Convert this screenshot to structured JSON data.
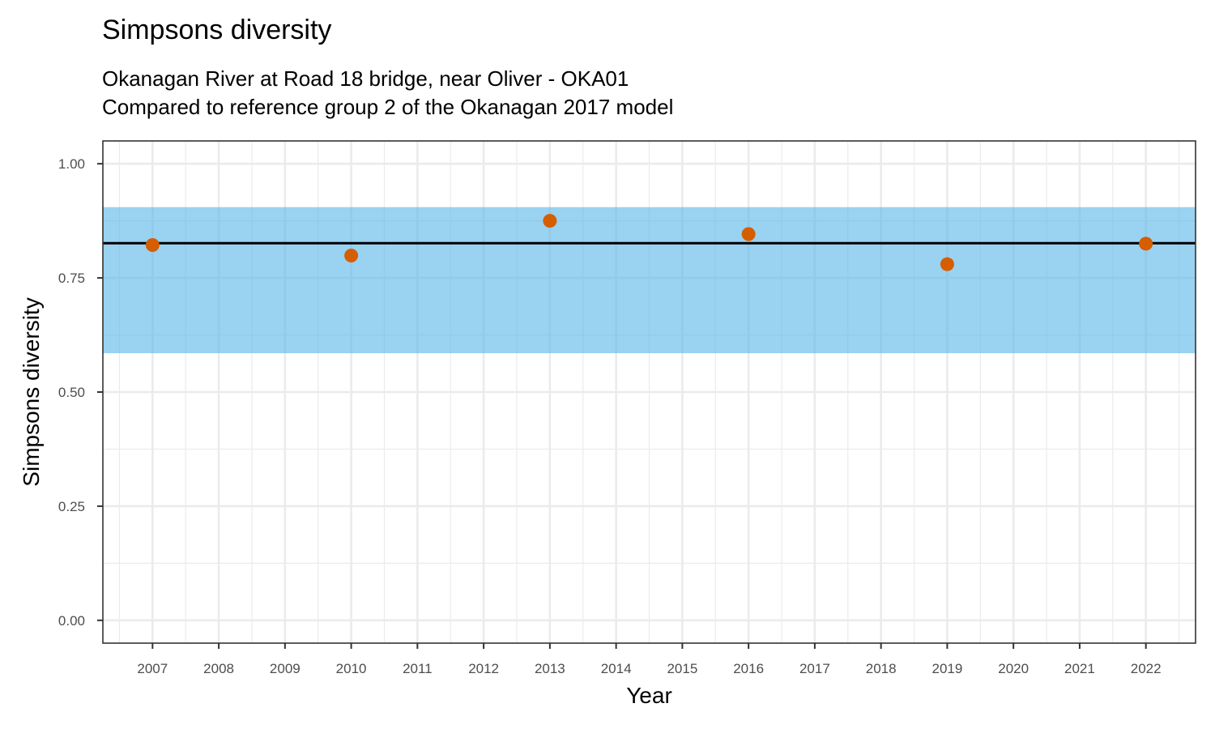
{
  "chart_data": {
    "type": "scatter",
    "title": "Simpsons diversity",
    "subtitle_lines": [
      "Okanagan River at Road 18 bridge, near Oliver - OKA01",
      "Compared to reference group 2 of the Okanagan 2017 model"
    ],
    "xlabel": "Year",
    "ylabel": "Simpsons diversity",
    "x_ticks": [
      2007,
      2008,
      2009,
      2010,
      2011,
      2012,
      2013,
      2014,
      2015,
      2016,
      2017,
      2018,
      2019,
      2020,
      2021,
      2022
    ],
    "x_tick_labels": [
      "2007",
      "2008",
      "2009",
      "2010",
      "2011",
      "2012",
      "2013",
      "2014",
      "2015",
      "2016",
      "2017",
      "2018",
      "2019",
      "2020",
      "2021",
      "2022"
    ],
    "y_ticks": [
      0.0,
      0.25,
      0.5,
      0.75,
      1.0
    ],
    "y_tick_labels": [
      "0.00",
      "0.25",
      "0.50",
      "0.75",
      "1.00"
    ],
    "xlim": [
      2006.25,
      2022.75
    ],
    "ylim": [
      -0.05,
      1.05
    ],
    "grid": true,
    "reference_band": {
      "low": 0.585,
      "high": 0.905,
      "color": "#56B4E9"
    },
    "reference_line": {
      "value": 0.826,
      "color": "#000000"
    },
    "points_color": "#D55E00",
    "series": [
      {
        "x": [
          2007,
          2010,
          2013,
          2016,
          2019,
          2022
        ],
        "y": [
          0.822,
          0.799,
          0.875,
          0.846,
          0.78,
          0.825
        ]
      }
    ]
  }
}
